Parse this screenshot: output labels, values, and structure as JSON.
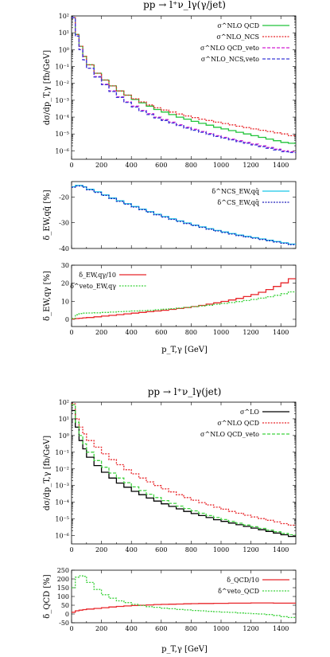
{
  "colors": {
    "green": "#22c43a",
    "red": "#e8262a",
    "magenta": "#d21fd2",
    "blue": "#3a3ad8",
    "cyan": "#19c7e6",
    "darkblue": "#1d1dbb",
    "black": "#000000",
    "lightgreen": "#3fd23f"
  },
  "figures": [
    {
      "title": "pp → l⁺ν_lγ(γ/jet)",
      "xlabel": "p_T,γ [GeV]"
    },
    {
      "title": "pp → l⁺ν_lγ(jet)",
      "xlabel": "p_T,γ [GeV]"
    }
  ],
  "chart_data": [
    {
      "type": "line",
      "panel": "top-main",
      "ylabel": "dσ/dp_T,γ [fb/GeV]",
      "yscale": "log",
      "xlim": [
        0,
        1500
      ],
      "ylim_exp": [
        -6.5,
        2
      ],
      "x_ticks": [
        "0",
        "200",
        "400",
        "600",
        "800",
        "1000",
        "1200",
        "1400"
      ],
      "y_ticks": [
        "10⁻⁶",
        "10⁻⁵",
        "10⁻⁴",
        "10⁻³",
        "10⁻²",
        "10⁻¹",
        "10⁰",
        "10¹",
        "10²"
      ],
      "legend_position": "top-right",
      "x_bin_edges": [
        0,
        25,
        50,
        75,
        100,
        150,
        200,
        250,
        300,
        350,
        400,
        450,
        500,
        550,
        600,
        650,
        700,
        750,
        800,
        850,
        900,
        950,
        1000,
        1050,
        1100,
        1150,
        1200,
        1250,
        1300,
        1350,
        1400,
        1450,
        1500
      ],
      "series": [
        {
          "name": "σ^NLO QCD",
          "color_key": "green",
          "log10_values": [
            1.9,
            0.9,
            0.2,
            -0.4,
            -0.9,
            -1.4,
            -1.8,
            -2.15,
            -2.45,
            -2.7,
            -2.95,
            -3.15,
            -3.35,
            -3.55,
            -3.7,
            -3.85,
            -4.0,
            -4.12,
            -4.25,
            -4.37,
            -4.48,
            -4.6,
            -4.7,
            -4.8,
            -4.9,
            -5.0,
            -5.1,
            -5.2,
            -5.3,
            -5.4,
            -5.5,
            -5.55
          ]
        },
        {
          "name": "σ^NLO_NCS",
          "color_key": "red",
          "log10_values": [
            1.9,
            0.9,
            0.2,
            -0.4,
            -0.9,
            -1.4,
            -1.8,
            -2.15,
            -2.45,
            -2.7,
            -2.92,
            -3.1,
            -3.28,
            -3.45,
            -3.58,
            -3.7,
            -3.82,
            -3.93,
            -4.03,
            -4.12,
            -4.2,
            -4.3,
            -4.38,
            -4.46,
            -4.54,
            -4.62,
            -4.7,
            -4.78,
            -4.85,
            -4.93,
            -5.0,
            -5.1
          ]
        },
        {
          "name": "σ^NLO QCD_veto",
          "color_key": "magenta",
          "log10_values": [
            1.9,
            0.8,
            0.0,
            -0.6,
            -1.1,
            -1.6,
            -2.05,
            -2.45,
            -2.8,
            -3.1,
            -3.35,
            -3.6,
            -3.8,
            -4.0,
            -4.15,
            -4.3,
            -4.45,
            -4.6,
            -4.72,
            -4.85,
            -4.97,
            -5.1,
            -5.2,
            -5.3,
            -5.4,
            -5.5,
            -5.6,
            -5.7,
            -5.8,
            -5.9,
            -6.0,
            -6.05
          ]
        },
        {
          "name": "σ^NLO_NCS,veto",
          "color_key": "blue",
          "log10_values": [
            1.9,
            0.8,
            0.0,
            -0.6,
            -1.1,
            -1.62,
            -2.08,
            -2.48,
            -2.83,
            -3.13,
            -3.4,
            -3.65,
            -3.85,
            -4.05,
            -4.2,
            -4.35,
            -4.5,
            -4.65,
            -4.78,
            -4.9,
            -5.02,
            -5.15,
            -5.25,
            -5.35,
            -5.45,
            -5.55,
            -5.65,
            -5.75,
            -5.85,
            -5.95,
            -6.05,
            -6.1
          ]
        }
      ]
    },
    {
      "type": "line",
      "panel": "top-ratio-1",
      "ylabel": "δ_EW,qq̄ [%]",
      "xlim": [
        0,
        1500
      ],
      "ylim": [
        -40,
        -14
      ],
      "y_ticks": [
        "-40",
        "-30",
        "-20"
      ],
      "legend_position": "top-right",
      "x_bin_edges": [
        0,
        25,
        50,
        75,
        100,
        150,
        200,
        250,
        300,
        350,
        400,
        450,
        500,
        550,
        600,
        650,
        700,
        750,
        800,
        850,
        900,
        950,
        1000,
        1050,
        1100,
        1150,
        1200,
        1250,
        1300,
        1350,
        1400,
        1450,
        1500
      ],
      "series": [
        {
          "name": "δ^NCS_EW,qq̄",
          "color_key": "cyan",
          "values": [
            -16,
            -15.5,
            -15.5,
            -16,
            -17,
            -18,
            -19.2,
            -20.4,
            -21.5,
            -22.6,
            -23.7,
            -24.7,
            -25.7,
            -26.7,
            -27.6,
            -28.5,
            -29.3,
            -30.1,
            -30.9,
            -31.6,
            -32.3,
            -33,
            -33.6,
            -34.2,
            -34.8,
            -35.3,
            -35.8,
            -36.3,
            -36.8,
            -37.3,
            -37.8,
            -38.3
          ]
        },
        {
          "name": "δ^CS_EW,qq̄",
          "color_key": "darkblue",
          "values": [
            -16.2,
            -15.7,
            -15.7,
            -16.2,
            -17.2,
            -18.2,
            -19.4,
            -20.6,
            -21.7,
            -22.8,
            -23.9,
            -24.9,
            -25.9,
            -26.9,
            -27.8,
            -28.7,
            -29.5,
            -30.3,
            -31.1,
            -31.8,
            -32.5,
            -33.2,
            -33.8,
            -34.4,
            -35,
            -35.5,
            -36,
            -36.5,
            -37,
            -37.5,
            -38,
            -38.5
          ]
        }
      ]
    },
    {
      "type": "line",
      "panel": "top-ratio-2",
      "ylabel": "δ_EW,qγ [%]",
      "xlim": [
        0,
        1500
      ],
      "ylim": [
        -4,
        30
      ],
      "y_ticks": [
        "0",
        "10",
        "20",
        "30"
      ],
      "legend_position": "top-left",
      "x_bin_edges": [
        0,
        25,
        50,
        75,
        100,
        150,
        200,
        250,
        300,
        350,
        400,
        450,
        500,
        550,
        600,
        650,
        700,
        750,
        800,
        850,
        900,
        950,
        1000,
        1050,
        1100,
        1150,
        1200,
        1250,
        1300,
        1350,
        1400,
        1450,
        1500
      ],
      "series": [
        {
          "name": "δ_EW,qγ/10",
          "color_key": "red",
          "values": [
            0.2,
            0.4,
            0.6,
            0.8,
            1.0,
            1.4,
            1.8,
            2.2,
            2.6,
            3.0,
            3.4,
            3.8,
            4.2,
            4.6,
            5.0,
            5.5,
            6.0,
            6.5,
            7.1,
            7.7,
            8.4,
            9.1,
            9.9,
            10.7,
            11.6,
            12.6,
            13.7,
            15,
            16.5,
            18.2,
            20.2,
            22.5
          ]
        },
        {
          "name": "δ^veto_EW,qγ",
          "color_key": "lightgreen",
          "values": [
            0.5,
            2.5,
            3.2,
            3.4,
            3.5,
            3.6,
            3.8,
            4.0,
            4.2,
            4.4,
            4.6,
            4.8,
            5.0,
            5.3,
            5.6,
            5.9,
            6.2,
            6.6,
            7.0,
            7.4,
            7.8,
            8.3,
            8.8,
            9.3,
            9.8,
            10.4,
            11.0,
            11.7,
            12.5,
            13.3,
            14.2,
            15.2
          ]
        }
      ]
    },
    {
      "type": "line",
      "panel": "bottom-main",
      "ylabel": "dσ/dp_T,γ [fb/GeV]",
      "yscale": "log",
      "xlim": [
        0,
        1500
      ],
      "ylim_exp": [
        -6.5,
        2
      ],
      "y_ticks": [
        "10⁻⁶",
        "10⁻⁵",
        "10⁻⁴",
        "10⁻³",
        "10⁻²",
        "10⁻¹",
        "10⁰",
        "10¹",
        "10²"
      ],
      "legend_position": "top-right",
      "x_bin_edges": [
        0,
        25,
        50,
        75,
        100,
        150,
        200,
        250,
        300,
        350,
        400,
        450,
        500,
        550,
        600,
        650,
        700,
        750,
        800,
        850,
        900,
        950,
        1000,
        1050,
        1100,
        1150,
        1200,
        1250,
        1300,
        1350,
        1400,
        1450,
        1500
      ],
      "series": [
        {
          "name": "σ^LO",
          "color_key": "black",
          "log10_values": [
            1.5,
            0.5,
            -0.3,
            -0.8,
            -1.3,
            -1.8,
            -2.2,
            -2.55,
            -2.85,
            -3.1,
            -3.35,
            -3.55,
            -3.75,
            -3.93,
            -4.1,
            -4.25,
            -4.4,
            -4.55,
            -4.68,
            -4.8,
            -4.92,
            -5.05,
            -5.15,
            -5.25,
            -5.35,
            -5.45,
            -5.55,
            -5.65,
            -5.75,
            -5.85,
            -5.95,
            -6.05
          ]
        },
        {
          "name": "σ^NLO QCD",
          "color_key": "red",
          "log10_values": [
            1.9,
            1.0,
            0.5,
            0.1,
            -0.3,
            -0.7,
            -1.1,
            -1.45,
            -1.75,
            -2.05,
            -2.3,
            -2.55,
            -2.78,
            -3.0,
            -3.2,
            -3.38,
            -3.55,
            -3.72,
            -3.88,
            -4.02,
            -4.16,
            -4.3,
            -4.42,
            -4.55,
            -4.66,
            -4.78,
            -4.88,
            -4.98,
            -5.08,
            -5.18,
            -5.28,
            -5.38
          ]
        },
        {
          "name": "σ^NLO QCD_veto",
          "color_key": "lightgreen",
          "log10_values": [
            1.85,
            0.8,
            0.0,
            -0.5,
            -1.0,
            -1.5,
            -1.9,
            -2.25,
            -2.55,
            -2.83,
            -3.08,
            -3.3,
            -3.52,
            -3.72,
            -3.9,
            -4.07,
            -4.23,
            -4.38,
            -4.52,
            -4.66,
            -4.8,
            -4.92,
            -5.04,
            -5.15,
            -5.26,
            -5.37,
            -5.47,
            -5.57,
            -5.67,
            -5.77,
            -5.87,
            -5.95
          ]
        }
      ]
    },
    {
      "type": "line",
      "panel": "bottom-ratio",
      "ylabel": "δ_QCD [%]",
      "xlim": [
        0,
        1500
      ],
      "ylim": [
        -50,
        250
      ],
      "y_ticks": [
        "-50",
        "0",
        "50",
        "100",
        "150",
        "200",
        "250"
      ],
      "legend_position": "top-right",
      "x_bin_edges": [
        0,
        25,
        50,
        75,
        100,
        150,
        200,
        250,
        300,
        350,
        400,
        450,
        500,
        550,
        600,
        650,
        700,
        750,
        800,
        850,
        900,
        950,
        1000,
        1050,
        1100,
        1150,
        1200,
        1250,
        1300,
        1350,
        1400,
        1450,
        1500
      ],
      "series": [
        {
          "name": "δ_QCD/10",
          "color_key": "red",
          "values": [
            10,
            18,
            22,
            25,
            28,
            32,
            36,
            40,
            43,
            46,
            48,
            50,
            52,
            54,
            55,
            56,
            57,
            58,
            59,
            60,
            60,
            61,
            61,
            62,
            62,
            62,
            63,
            63,
            63,
            62,
            62,
            62
          ]
        },
        {
          "name": "δ^veto_QCD",
          "color_key": "lightgreen",
          "values": [
            150,
            210,
            218,
            215,
            180,
            140,
            110,
            90,
            75,
            65,
            55,
            48,
            42,
            38,
            33,
            30,
            26,
            23,
            20,
            18,
            15,
            13,
            11,
            9,
            6,
            4,
            2,
            0,
            -3,
            -8,
            -15,
            -20
          ]
        }
      ]
    }
  ]
}
